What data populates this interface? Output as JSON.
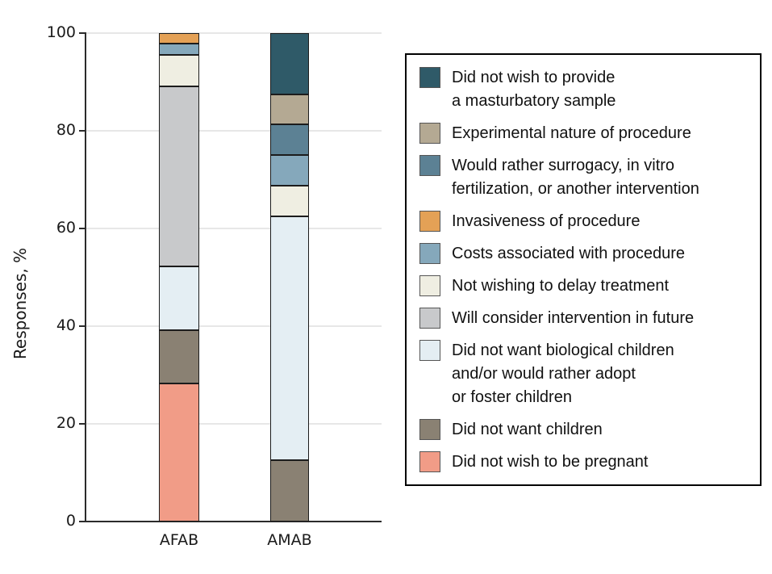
{
  "chart_data": {
    "type": "bar",
    "subtype": "stacked-vertical",
    "title": "",
    "ylabel": "Responses, %",
    "xlabel": "",
    "ylim": [
      0,
      100
    ],
    "yticks": [
      0,
      20,
      40,
      60,
      80,
      100
    ],
    "grid": true,
    "legend_position": "right",
    "categories": [
      "AFAB",
      "AMAB"
    ],
    "series": [
      {
        "name": "Did not wish to be pregnant",
        "legend_lines": [
          "Did not wish to be pregnant"
        ],
        "color": "#F19C87",
        "values": [
          28.3,
          0
        ]
      },
      {
        "name": "Did not want children",
        "legend_lines": [
          "Did not want children"
        ],
        "color": "#8A8173",
        "values": [
          10.9,
          12.5
        ]
      },
      {
        "name": "Did not want biological children and/or would rather adopt or foster children",
        "legend_lines": [
          "Did not want biological children",
          "and/or would rather adopt",
          "or foster children"
        ],
        "color": "#E4EEF3",
        "values": [
          13.0,
          50.0
        ]
      },
      {
        "name": "Will consider intervention in future",
        "legend_lines": [
          "Will consider intervention in future"
        ],
        "color": "#C8C9CB",
        "values": [
          36.9,
          0
        ]
      },
      {
        "name": "Not wishing to delay treatment",
        "legend_lines": [
          "Not wishing to delay treatment"
        ],
        "color": "#EFEEE2",
        "values": [
          6.5,
          6.25
        ]
      },
      {
        "name": "Costs associated with procedure",
        "legend_lines": [
          "Costs associated with procedure"
        ],
        "color": "#85A8BB",
        "values": [
          2.2,
          6.25
        ]
      },
      {
        "name": "Invasiveness of procedure",
        "legend_lines": [
          "Invasiveness of procedure"
        ],
        "color": "#E4A156",
        "values": [
          2.2,
          0
        ]
      },
      {
        "name": "Would rather surrogacy, in vitro fertilization, or another intervention",
        "legend_lines": [
          "Would rather surrogacy, in vitro",
          "fertilization, or another intervention"
        ],
        "color": "#5C8194",
        "values": [
          0,
          6.25
        ]
      },
      {
        "name": "Experimental nature of procedure",
        "legend_lines": [
          "Experimental nature of procedure"
        ],
        "color": "#B4A993",
        "values": [
          0,
          6.25
        ]
      },
      {
        "name": "Did not wish to provide a masturbatory sample",
        "legend_lines": [
          "Did not wish to provide",
          "a masturbatory sample"
        ],
        "color": "#2F5A68",
        "values": [
          0,
          12.5
        ]
      }
    ]
  }
}
